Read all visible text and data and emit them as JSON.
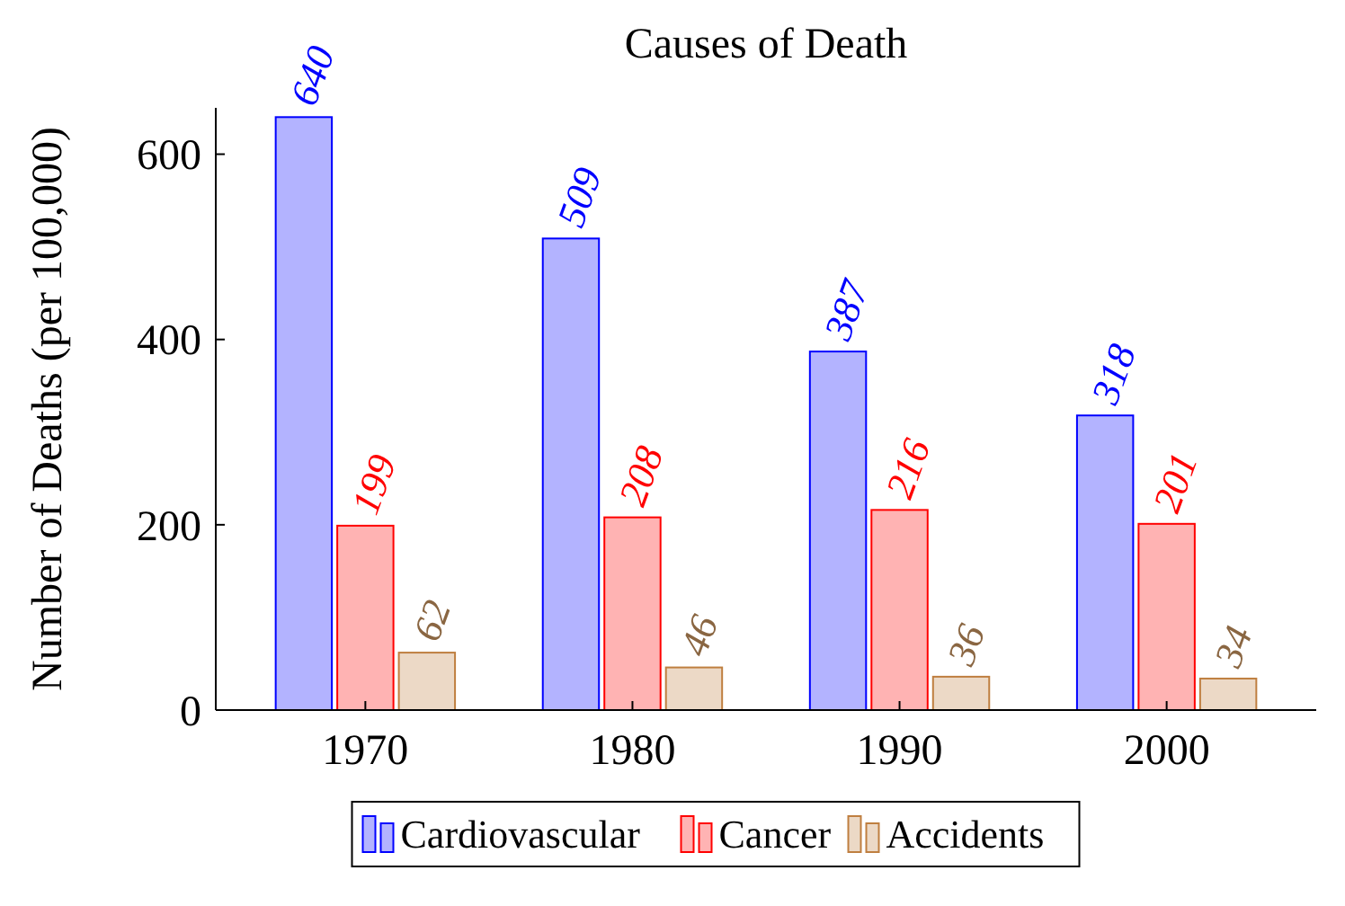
{
  "chart_data": {
    "type": "bar",
    "title": "Causes of Death",
    "ylabel": "Number of Deaths (per 100,000)",
    "categories": [
      "1970",
      "1980",
      "1990",
      "2000"
    ],
    "series": [
      {
        "name": "Cardiovascular",
        "color": "#b3b3ff",
        "values": [
          640,
          509,
          387,
          318
        ]
      },
      {
        "name": "Cancer",
        "color": "#ffb3b3",
        "values": [
          199,
          208,
          216,
          201
        ]
      },
      {
        "name": "Accidents",
        "color": "#ecd9c6",
        "values": [
          62,
          46,
          36,
          34
        ]
      }
    ],
    "ylim": [
      0,
      650
    ],
    "yticks": [
      0,
      200,
      400,
      600
    ],
    "grid": false,
    "legend": "bottom",
    "data_labels": true
  }
}
